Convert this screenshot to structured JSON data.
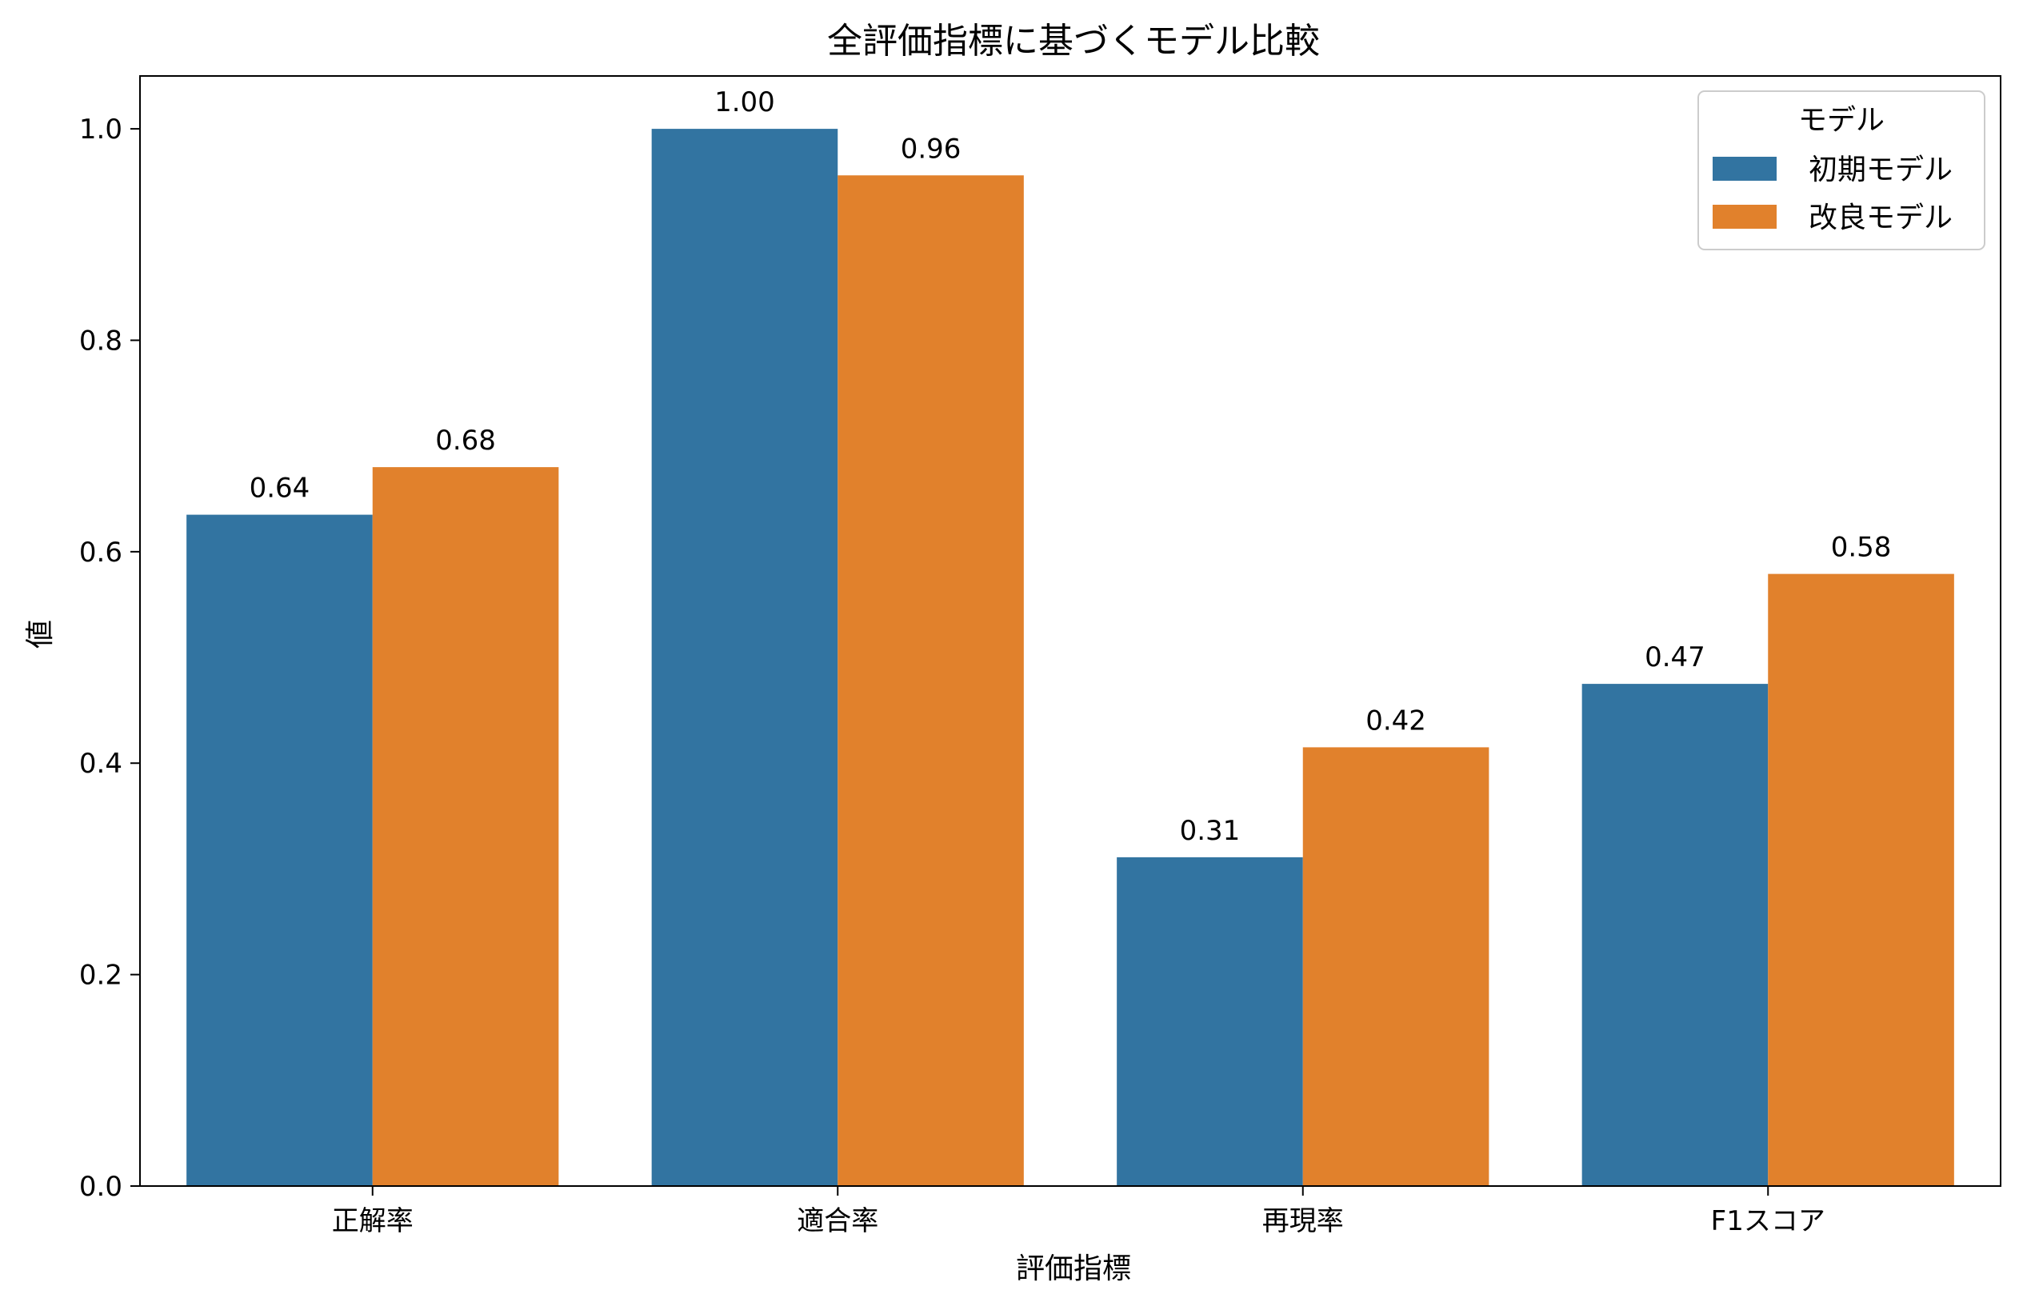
{
  "chart_data": {
    "type": "bar",
    "title": "全評価指標に基づくモデル比較",
    "xlabel": "評価指標",
    "ylabel": "値",
    "categories": [
      "正解率",
      "適合率",
      "再現率",
      "F1スコア"
    ],
    "series": [
      {
        "name": "初期モデル",
        "color": "#3274a1",
        "values": [
          0.635,
          1.0,
          0.311,
          0.475
        ],
        "labels": [
          "0.64",
          "1.00",
          "0.31",
          "0.47"
        ]
      },
      {
        "name": "改良モデル",
        "color": "#e1812c",
        "values": [
          0.68,
          0.956,
          0.415,
          0.579
        ],
        "labels": [
          "0.68",
          "0.96",
          "0.42",
          "0.58"
        ]
      }
    ],
    "ylim": [
      0,
      1.05
    ],
    "yticks": [
      "0.0",
      "0.2",
      "0.4",
      "0.6",
      "0.8",
      "1.0"
    ],
    "legend": {
      "title": "モデル",
      "position": "upper right"
    },
    "grid": false
  }
}
